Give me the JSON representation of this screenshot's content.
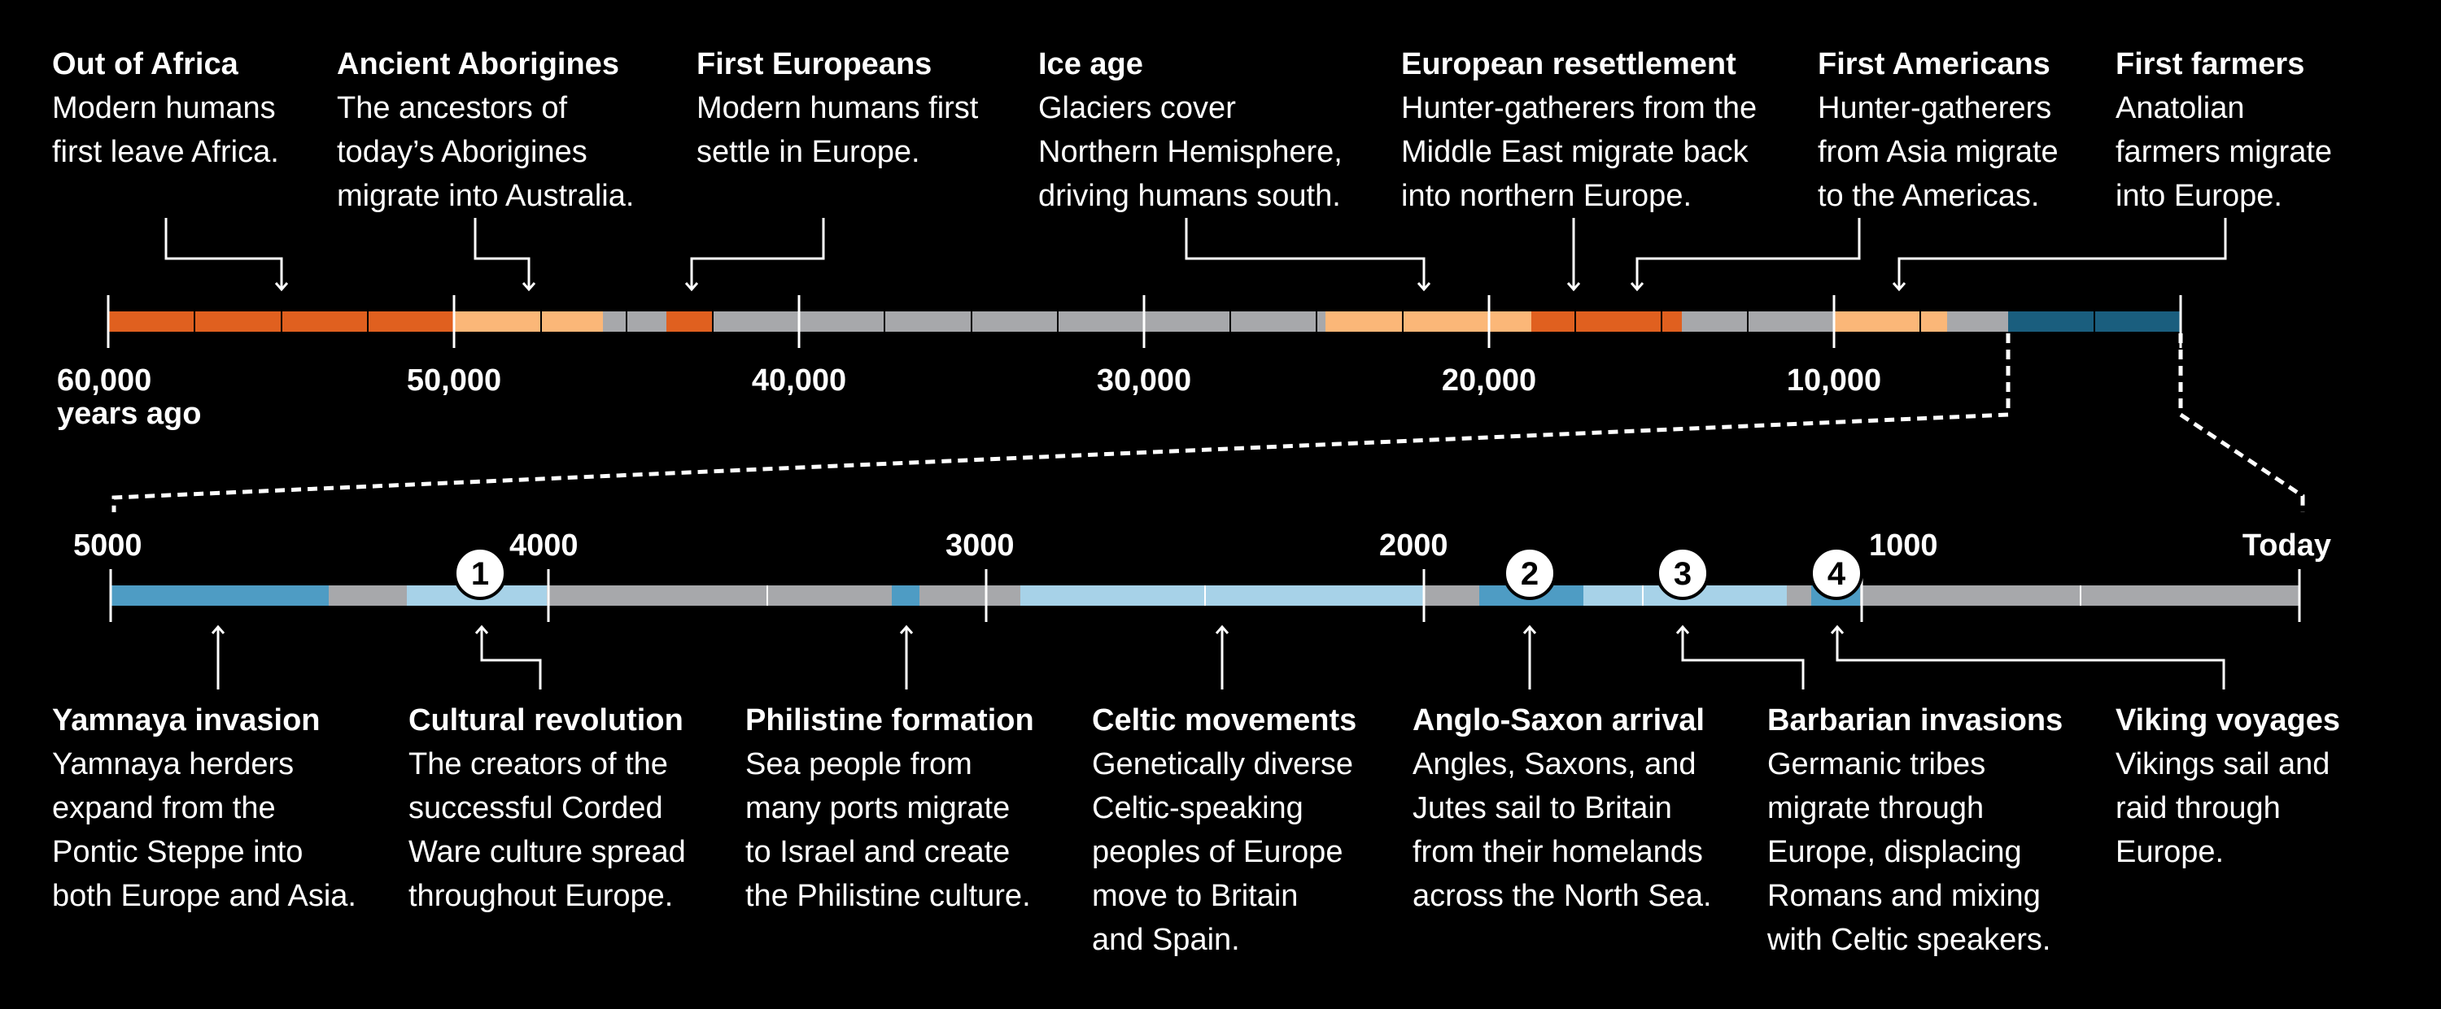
{
  "top_timeline": {
    "unit_label": "years ago",
    "ticks": [
      "60,000",
      "50,000",
      "40,000",
      "30,000",
      "20,000",
      "10,000"
    ],
    "events": [
      {
        "title": "Out of Africa",
        "desc": "Modern humans\nfirst leave Africa."
      },
      {
        "title": "Ancient Aborigines",
        "desc": "The ancestors of\ntoday’s Aborigines\nmigrate into Australia."
      },
      {
        "title": "First Europeans",
        "desc": "Modern humans first\nsettle in Europe."
      },
      {
        "title": "Ice age",
        "desc": "Glaciers cover\nNorthern Hemisphere,\ndriving humans south."
      },
      {
        "title": "European resettlement",
        "desc": "Hunter-gatherers from the\nMiddle East migrate back\ninto northern Europe."
      },
      {
        "title": "First Americans",
        "desc": "Hunter-gatherers\nfrom Asia migrate\nto the Americas."
      },
      {
        "title": "First farmers",
        "desc": "Anatolian\nfarmers migrate\ninto Europe."
      }
    ]
  },
  "bottom_timeline": {
    "ticks": [
      "5000",
      "4000",
      "3000",
      "2000",
      "1000",
      "Today"
    ],
    "markers": [
      "1",
      "2",
      "3",
      "4"
    ],
    "events": [
      {
        "title": "Yamnaya invasion",
        "desc": "Yamnaya herders\nexpand from the\nPontic Steppe into\nboth Europe and Asia."
      },
      {
        "title": "Cultural revolution",
        "desc": "The creators of the\nsuccessful Corded\nWare culture spread\nthroughout Europe."
      },
      {
        "title": "Philistine formation",
        "desc": "Sea people from\nmany ports migrate\nto Israel and create\nthe Philistine culture."
      },
      {
        "title": "Celtic movements",
        "desc": "Genetically diverse\nCeltic-speaking\npeoples of Europe\nmove to Britain\nand Spain."
      },
      {
        "title": "Anglo-Saxon arrival",
        "desc": "Angles, Saxons, and\nJutes sail to Britain\nfrom their homelands\nacross the North Sea."
      },
      {
        "title": "Barbarian invasions",
        "desc": "Germanic tribes\nmigrate through\nEurope, displacing\nRomans and mixing\nwith Celtic speakers."
      },
      {
        "title": "Viking voyages",
        "desc": "Vikings sail and\nraid through\nEurope."
      }
    ]
  },
  "colors": {
    "background": "#000000",
    "gray": "#a7a8ab",
    "dark_orange": "#e0601f",
    "light_orange": "#fbb778",
    "dark_blue": "#1a5e7e",
    "mid_blue": "#4e9cc4",
    "light_blue": "#a7d2e8"
  }
}
